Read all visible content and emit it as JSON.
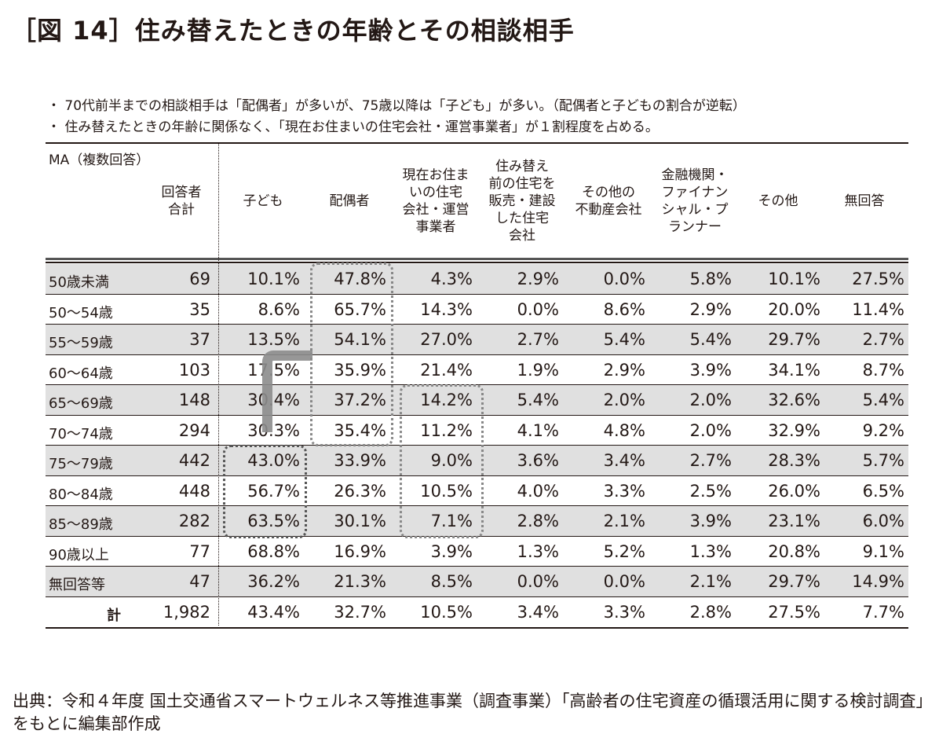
{
  "title": "［図 14］住み替えたときの年齢とその相談相手",
  "notes": [
    "・ 70代前半までの相談相手は「配偶者」が多いが、75歳以降は「子ども」が多い。（配偶者と子どもの割合が逆転）",
    "・ 住み替えたときの年齢に関係なく、「現在お住まいの住宅会社・運営事業者」が１割程度を占める。"
  ],
  "table": {
    "ma_label": "MA（複数回答）",
    "headers": [
      "回答者\n合計",
      "子ども",
      "配偶者",
      "現在お住ま\nいの住宅\n会社・運営\n事業者",
      "住み替え\n前の住宅を\n販売・建設\nした住宅\n会社",
      "その他の\n不動産会社",
      "金融機関・\nファイナン\nシャル・プ\nランナー",
      "その他",
      "無回答"
    ],
    "rows": [
      {
        "label": "50歳未満",
        "n": "69",
        "v": [
          "10.1%",
          "47.8%",
          "4.3%",
          "2.9%",
          "0.0%",
          "5.8%",
          "10.1%",
          "27.5%"
        ],
        "shaded": true
      },
      {
        "label": "50～54歳",
        "n": "35",
        "v": [
          "8.6%",
          "65.7%",
          "14.3%",
          "0.0%",
          "8.6%",
          "2.9%",
          "20.0%",
          "11.4%"
        ],
        "shaded": false
      },
      {
        "label": "55～59歳",
        "n": "37",
        "v": [
          "13.5%",
          "54.1%",
          "27.0%",
          "2.7%",
          "5.4%",
          "5.4%",
          "29.7%",
          "2.7%"
        ],
        "shaded": true
      },
      {
        "label": "60～64歳",
        "n": "103",
        "v": [
          "17.5%",
          "35.9%",
          "21.4%",
          "1.9%",
          "2.9%",
          "3.9%",
          "34.1%",
          "8.7%"
        ],
        "shaded": false
      },
      {
        "label": "65～69歳",
        "n": "148",
        "v": [
          "30.4%",
          "37.2%",
          "14.2%",
          "5.4%",
          "2.0%",
          "2.0%",
          "32.6%",
          "5.4%"
        ],
        "shaded": true
      },
      {
        "label": "70～74歳",
        "n": "294",
        "v": [
          "30.3%",
          "35.4%",
          "11.2%",
          "4.1%",
          "4.8%",
          "2.0%",
          "32.9%",
          "9.2%"
        ],
        "shaded": false
      },
      {
        "label": "75～79歳",
        "n": "442",
        "v": [
          "43.0%",
          "33.9%",
          "9.0%",
          "3.6%",
          "3.4%",
          "2.7%",
          "28.3%",
          "5.7%"
        ],
        "shaded": true
      },
      {
        "label": "80～84歳",
        "n": "448",
        "v": [
          "56.7%",
          "26.3%",
          "10.5%",
          "4.0%",
          "3.3%",
          "2.5%",
          "26.0%",
          "6.5%"
        ],
        "shaded": false
      },
      {
        "label": "85～89歳",
        "n": "282",
        "v": [
          "63.5%",
          "30.1%",
          "7.1%",
          "2.8%",
          "2.1%",
          "3.9%",
          "23.1%",
          "6.0%"
        ],
        "shaded": true
      },
      {
        "label": "90歳以上",
        "n": "77",
        "v": [
          "68.8%",
          "16.9%",
          "3.9%",
          "1.3%",
          "5.2%",
          "1.3%",
          "20.8%",
          "9.1%"
        ],
        "shaded": false
      },
      {
        "label": "無回答等",
        "n": "47",
        "v": [
          "36.2%",
          "21.3%",
          "8.5%",
          "0.0%",
          "0.0%",
          "2.1%",
          "29.7%",
          "14.9%"
        ],
        "shaded": true
      }
    ],
    "total": {
      "label": "計",
      "n": "1,982",
      "v": [
        "43.4%",
        "32.7%",
        "10.5%",
        "3.4%",
        "3.3%",
        "2.8%",
        "27.5%",
        "7.7%"
      ]
    }
  },
  "source": "出典：令和４年度 国土交通省スマートウェルネス等推進事業（調査事業）「高齢者の住宅資産の循環活用に関する検討調査」をもとに編集部作成",
  "colors": {
    "shade": "#e0e0e0",
    "text": "#231815",
    "highlight": "#888888"
  }
}
